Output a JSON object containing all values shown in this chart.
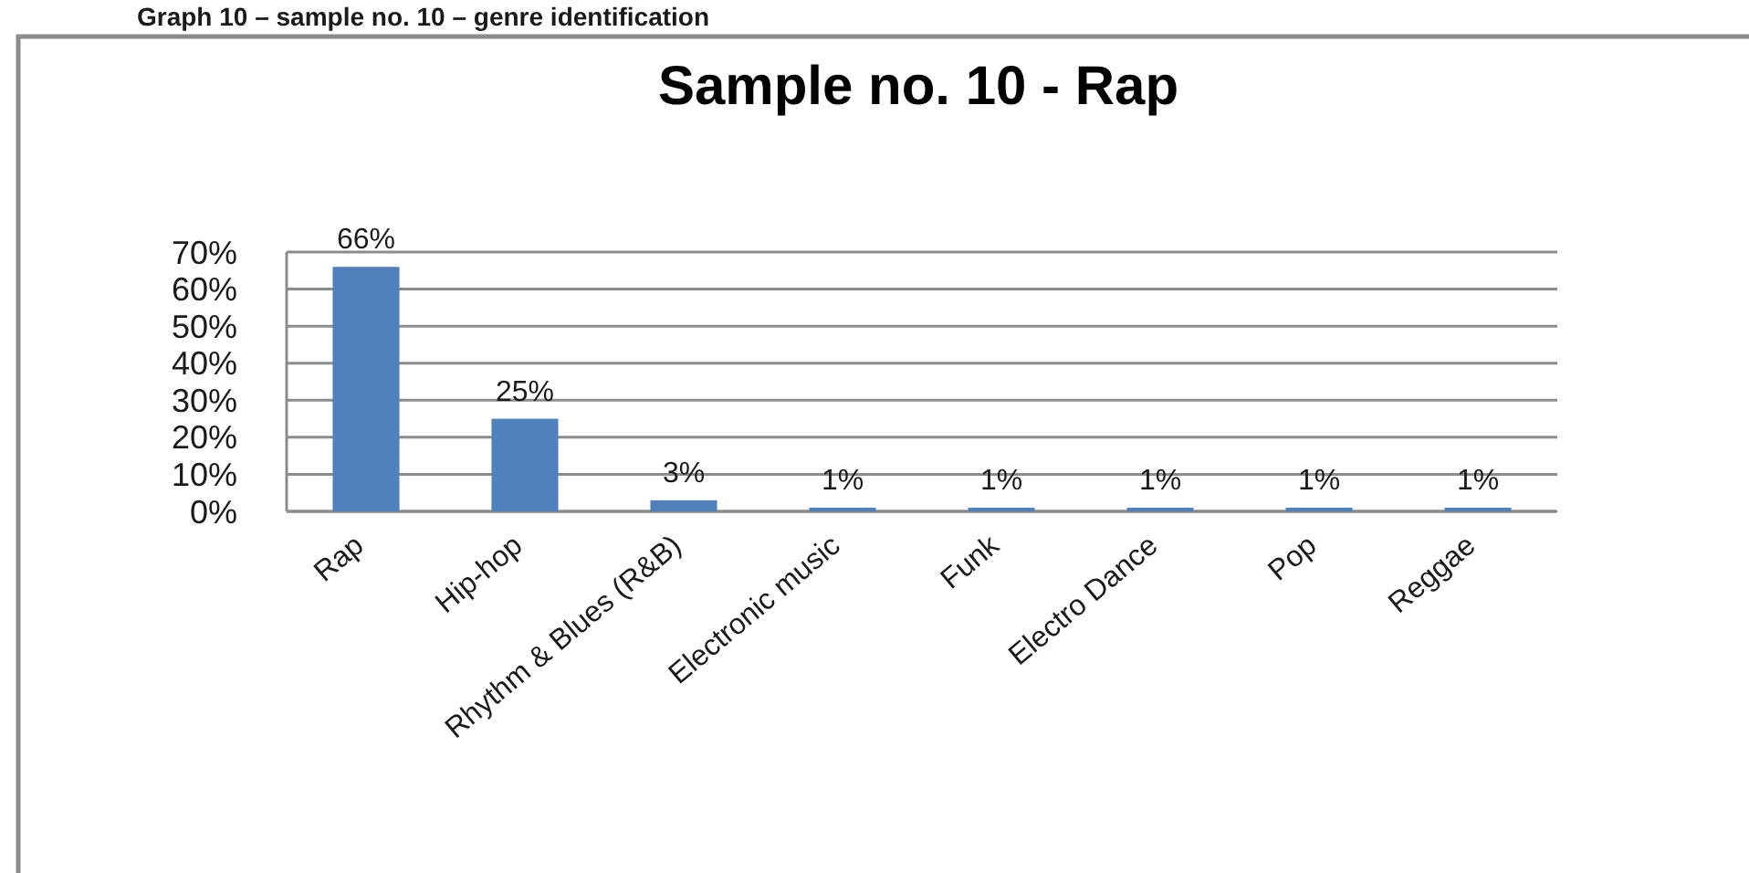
{
  "chart_data": {
    "type": "bar",
    "title": "Sample no. 10 - Rap",
    "annotations": [
      "Graph 10 – sample no. 10 – genre identification"
    ],
    "categories": [
      "Rap",
      "Hip-hop",
      "Rhythm & Blues (R&B)",
      "Electronic music",
      "Funk",
      "Electro Dance",
      "Pop",
      "Reggae"
    ],
    "values": [
      66,
      25,
      3,
      1,
      1,
      1,
      1,
      1
    ],
    "color": "#4f81bd",
    "value_labels": [
      "66%",
      "25%",
      "3%",
      "1%",
      "1%",
      "1%",
      "1%",
      "1%"
    ],
    "ylim": [
      0,
      70
    ],
    "yticks": [
      {
        "value": 0,
        "label": "0%"
      },
      {
        "value": 10,
        "label": "10%"
      },
      {
        "value": 20,
        "label": "20%"
      },
      {
        "value": 30,
        "label": "30%"
      },
      {
        "value": 40,
        "label": "40%"
      },
      {
        "value": 50,
        "label": "50%"
      },
      {
        "value": 60,
        "label": "60%"
      },
      {
        "value": 70,
        "label": "70%"
      }
    ],
    "grid": "y"
  }
}
